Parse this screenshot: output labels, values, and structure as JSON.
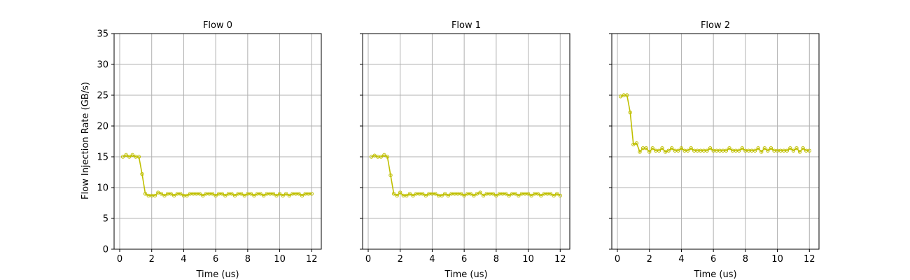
{
  "colors": {
    "series": "#bfbf00",
    "grid": "#b0b0b0",
    "axis": "#000000"
  },
  "chart_data": [
    {
      "type": "line",
      "title": "Flow 0",
      "xlabel": "Time (us)",
      "ylabel": "Flow Injection Rate (GB/s)",
      "xlim": [
        -0.35,
        12.6
      ],
      "ylim": [
        0,
        35
      ],
      "xticks": [
        0,
        2,
        4,
        6,
        8,
        10,
        12
      ],
      "yticks": [
        0,
        5,
        10,
        15,
        20,
        25,
        30,
        35
      ],
      "grid": true,
      "series": [
        {
          "x": [
            0.2,
            0.4,
            0.6,
            0.8,
            1.0,
            1.2,
            1.4,
            1.6,
            1.8,
            2.0,
            2.2,
            2.4,
            2.6,
            2.8,
            3.0,
            3.2,
            3.4,
            3.6,
            3.8,
            4.0,
            4.2,
            4.4,
            4.6,
            4.8,
            5.0,
            5.2,
            5.4,
            5.6,
            5.8,
            6.0,
            6.2,
            6.4,
            6.6,
            6.8,
            7.0,
            7.2,
            7.4,
            7.6,
            7.8,
            8.0,
            8.2,
            8.4,
            8.6,
            8.8,
            9.0,
            9.2,
            9.4,
            9.6,
            9.8,
            10.0,
            10.2,
            10.4,
            10.6,
            10.8,
            11.0,
            11.2,
            11.4,
            11.6,
            11.8,
            12.0
          ],
          "y": [
            15.0,
            15.3,
            15.0,
            15.3,
            15.0,
            15.0,
            12.2,
            9.0,
            8.7,
            8.7,
            8.7,
            9.2,
            9.0,
            8.7,
            9.0,
            9.0,
            8.7,
            9.0,
            9.0,
            8.7,
            8.7,
            9.0,
            9.0,
            9.0,
            9.0,
            8.7,
            9.0,
            9.0,
            9.0,
            8.7,
            9.0,
            9.0,
            8.7,
            9.0,
            9.0,
            8.7,
            9.0,
            9.0,
            8.7,
            9.0,
            9.0,
            8.7,
            9.0,
            9.0,
            8.7,
            9.0,
            9.0,
            9.0,
            8.7,
            9.0,
            8.7,
            9.0,
            8.7,
            9.0,
            9.0,
            9.0,
            8.7,
            9.0,
            9.0,
            9.0
          ]
        }
      ]
    },
    {
      "type": "line",
      "title": "Flow 1",
      "xlabel": "Time (us)",
      "ylabel": "",
      "xlim": [
        -0.35,
        12.6
      ],
      "ylim": [
        0,
        35
      ],
      "xticks": [
        0,
        2,
        4,
        6,
        8,
        10,
        12
      ],
      "yticks": [
        0,
        5,
        10,
        15,
        20,
        25,
        30,
        35
      ],
      "grid": true,
      "series": [
        {
          "x": [
            0.2,
            0.4,
            0.6,
            0.8,
            1.0,
            1.2,
            1.4,
            1.6,
            1.8,
            2.0,
            2.2,
            2.4,
            2.6,
            2.8,
            3.0,
            3.2,
            3.4,
            3.6,
            3.8,
            4.0,
            4.2,
            4.4,
            4.6,
            4.8,
            5.0,
            5.2,
            5.4,
            5.6,
            5.8,
            6.0,
            6.2,
            6.4,
            6.6,
            6.8,
            7.0,
            7.2,
            7.4,
            7.6,
            7.8,
            8.0,
            8.2,
            8.4,
            8.6,
            8.8,
            9.0,
            9.2,
            9.4,
            9.6,
            9.8,
            10.0,
            10.2,
            10.4,
            10.6,
            10.8,
            11.0,
            11.2,
            11.4,
            11.6,
            11.8,
            12.0
          ],
          "y": [
            15.0,
            15.2,
            15.0,
            15.0,
            15.3,
            15.0,
            12.0,
            9.0,
            8.7,
            9.2,
            8.7,
            8.7,
            9.0,
            8.7,
            9.0,
            9.0,
            9.0,
            8.7,
            9.0,
            9.0,
            9.0,
            8.7,
            8.7,
            9.0,
            8.7,
            9.0,
            9.0,
            9.0,
            9.0,
            8.7,
            9.0,
            9.0,
            8.7,
            9.0,
            9.2,
            8.7,
            9.0,
            9.0,
            9.0,
            8.7,
            9.0,
            9.0,
            9.0,
            8.7,
            9.0,
            9.0,
            8.7,
            9.0,
            9.0,
            9.0,
            8.7,
            9.0,
            9.0,
            8.7,
            9.0,
            9.0,
            9.0,
            8.7,
            9.0,
            8.7
          ]
        }
      ]
    },
    {
      "type": "line",
      "title": "Flow 2",
      "xlabel": "Time (us)",
      "ylabel": "",
      "xlim": [
        -0.35,
        12.6
      ],
      "ylim": [
        0,
        35
      ],
      "xticks": [
        0,
        2,
        4,
        6,
        8,
        10,
        12
      ],
      "yticks": [
        0,
        5,
        10,
        15,
        20,
        25,
        30,
        35
      ],
      "grid": true,
      "series": [
        {
          "x": [
            0.2,
            0.4,
            0.6,
            0.8,
            1.0,
            1.2,
            1.4,
            1.6,
            1.8,
            2.0,
            2.2,
            2.4,
            2.6,
            2.8,
            3.0,
            3.2,
            3.4,
            3.6,
            3.8,
            4.0,
            4.2,
            4.4,
            4.6,
            4.8,
            5.0,
            5.2,
            5.4,
            5.6,
            5.8,
            6.0,
            6.2,
            6.4,
            6.6,
            6.8,
            7.0,
            7.2,
            7.4,
            7.6,
            7.8,
            8.0,
            8.2,
            8.4,
            8.6,
            8.8,
            9.0,
            9.2,
            9.4,
            9.6,
            9.8,
            10.0,
            10.2,
            10.4,
            10.6,
            10.8,
            11.0,
            11.2,
            11.4,
            11.6,
            11.8,
            12.0
          ],
          "y": [
            24.8,
            25.0,
            25.0,
            22.2,
            17.0,
            17.2,
            15.8,
            16.4,
            16.4,
            15.8,
            16.4,
            16.0,
            16.0,
            16.4,
            15.8,
            16.0,
            16.4,
            16.0,
            16.0,
            16.4,
            16.0,
            16.0,
            16.4,
            16.0,
            16.0,
            16.0,
            16.0,
            16.0,
            16.4,
            16.0,
            16.0,
            16.0,
            16.0,
            16.0,
            16.4,
            16.0,
            16.0,
            16.0,
            16.4,
            16.0,
            16.0,
            16.0,
            16.0,
            16.4,
            15.8,
            16.4,
            16.0,
            16.4,
            16.0,
            16.0,
            16.0,
            16.0,
            16.0,
            16.4,
            16.0,
            16.4,
            15.8,
            16.4,
            16.0,
            16.0
          ]
        }
      ]
    }
  ]
}
